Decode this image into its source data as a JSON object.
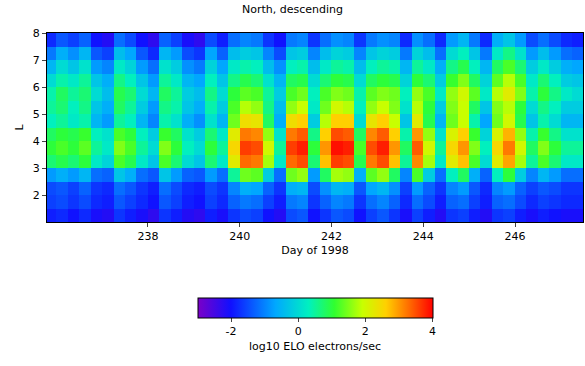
{
  "chart_data": {
    "type": "heatmap",
    "title": "North, descending",
    "xlabel": "Day of 1998",
    "ylabel": "L",
    "xlim": [
      235.8,
      247.48
    ],
    "xticks": [
      238,
      240,
      242,
      244,
      246
    ],
    "ylim": [
      1.0,
      8.0
    ],
    "yticks": [
      2,
      3,
      4,
      5,
      6,
      7,
      8
    ],
    "x": [
      235.875,
      236.125,
      236.375,
      236.625,
      236.875,
      237.125,
      237.375,
      237.625,
      237.875,
      238.125,
      238.375,
      238.625,
      238.875,
      239.125,
      239.375,
      239.625,
      239.875,
      240.125,
      240.375,
      240.625,
      240.875,
      241.125,
      241.375,
      241.625,
      241.875,
      242.125,
      242.375,
      242.625,
      242.875,
      243.125,
      243.375,
      243.625,
      243.875,
      244.125,
      244.375,
      244.625,
      244.875,
      245.125,
      245.375,
      245.625,
      245.875,
      246.125,
      246.375,
      246.625,
      246.875,
      247.125,
      247.375
    ],
    "y": [
      1.25,
      1.75,
      2.25,
      2.75,
      3.25,
      3.75,
      4.25,
      4.75,
      5.25,
      5.75,
      6.25,
      6.75,
      7.25,
      7.75
    ],
    "z": [
      [
        -1.9,
        -1.8,
        -2.0,
        -1.8,
        -2.1,
        -2.2,
        -1.7,
        -1.9,
        -2.1,
        -2.3,
        -1.7,
        -1.9,
        -2.2,
        -2.3,
        -1.9,
        -2.1,
        -1.7,
        -1.5,
        -1.6,
        -2.0,
        -2.2,
        -1.5,
        -1.4,
        -2.0,
        -1.7,
        -1.4,
        -1.5,
        -2.0,
        -1.6,
        -1.4,
        -1.7,
        -2.1,
        -1.6,
        -1.9,
        -2.2,
        -1.7,
        -1.6,
        -1.9,
        -2.2,
        -1.7,
        -1.6,
        -1.9,
        -2.1,
        -1.9,
        -2.0,
        -2.1,
        -2.1
      ],
      [
        -1.6,
        -1.5,
        -1.7,
        -1.5,
        -1.8,
        -1.9,
        -1.4,
        -1.6,
        -1.8,
        -2.0,
        -1.4,
        -1.6,
        -1.9,
        -2.0,
        -1.6,
        -1.8,
        -1.3,
        -1.1,
        -1.2,
        -1.6,
        -1.9,
        -1.1,
        -1.0,
        -1.7,
        -1.3,
        -1.0,
        -1.1,
        -1.7,
        -1.2,
        -1.0,
        -1.3,
        -1.8,
        -1.2,
        -1.5,
        -1.9,
        -1.3,
        -1.2,
        -1.6,
        -1.9,
        -1.3,
        -1.2,
        -1.5,
        -1.8,
        -1.6,
        -1.7,
        -1.8,
        -1.8
      ],
      [
        -1.5,
        -1.4,
        -1.6,
        -1.3,
        -1.7,
        -1.8,
        -1.2,
        -1.4,
        -1.7,
        -1.9,
        -1.2,
        -1.5,
        -1.8,
        -1.9,
        -1.5,
        -1.7,
        -1.0,
        -0.6,
        -0.7,
        -1.3,
        -1.7,
        -0.6,
        -0.5,
        -1.5,
        -0.9,
        -0.5,
        -0.6,
        -1.4,
        -0.7,
        -0.5,
        -0.9,
        -1.6,
        -0.8,
        -1.3,
        -1.7,
        -1.0,
        -0.8,
        -1.4,
        -1.8,
        -1.0,
        -0.8,
        -1.3,
        -1.6,
        -1.4,
        -1.5,
        -1.7,
        -1.7
      ],
      [
        -0.8,
        -0.6,
        -0.8,
        -0.5,
        -1.2,
        -1.3,
        -0.3,
        -0.6,
        -1.2,
        -1.4,
        -0.3,
        -0.8,
        -1.3,
        -1.4,
        -0.8,
        -1.2,
        0.5,
        1.4,
        1.3,
        -0.2,
        -1.2,
        1.4,
        1.6,
        -0.8,
        0.8,
        1.7,
        1.6,
        -0.6,
        1.3,
        1.6,
        0.8,
        -1.0,
        1.2,
        -0.2,
        -1.2,
        0.3,
        0.8,
        -0.6,
        -1.3,
        0.3,
        1.0,
        -0.2,
        -1.0,
        -0.5,
        -0.8,
        -1.2,
        -1.2
      ],
      [
        0.7,
        0.9,
        0.7,
        1.0,
        0.2,
        -0.1,
        1.2,
        0.9,
        0.2,
        -0.3,
        1.2,
        0.7,
        0.0,
        -0.3,
        0.7,
        0.2,
        2.2,
        3.3,
        3.2,
        1.7,
        0.2,
        3.3,
        3.5,
        0.7,
        2.7,
        3.6,
        3.5,
        0.9,
        3.2,
        3.5,
        2.7,
        0.5,
        3.1,
        1.7,
        0.2,
        2.2,
        2.7,
        1.2,
        0.0,
        2.2,
        2.9,
        1.7,
        0.5,
        1.2,
        0.7,
        0.2,
        0.2
      ],
      [
        1.0,
        1.2,
        1.0,
        1.3,
        0.5,
        0.2,
        1.5,
        1.2,
        0.5,
        0.0,
        1.5,
        1.0,
        0.3,
        0.0,
        1.0,
        0.5,
        2.5,
        3.6,
        3.5,
        2.0,
        0.5,
        3.6,
        3.8,
        1.0,
        3.0,
        3.9,
        3.8,
        1.2,
        3.5,
        3.8,
        3.0,
        0.8,
        3.4,
        2.0,
        0.5,
        2.5,
        3.0,
        1.5,
        0.3,
        2.5,
        3.2,
        2.0,
        0.8,
        1.5,
        1.0,
        0.5,
        0.5
      ],
      [
        0.8,
        1.0,
        0.9,
        1.1,
        0.3,
        0.1,
        1.2,
        1.0,
        0.3,
        -0.2,
        1.1,
        0.8,
        0.1,
        -0.2,
        0.7,
        0.2,
        2.2,
        3.2,
        3.1,
        1.6,
        0.1,
        3.2,
        3.4,
        0.6,
        2.6,
        3.5,
        3.4,
        0.8,
        3.1,
        3.4,
        2.6,
        0.4,
        3.0,
        1.6,
        0.1,
        2.1,
        2.6,
        1.1,
        -0.1,
        2.1,
        2.8,
        1.6,
        0.4,
        1.1,
        0.6,
        0.1,
        0.1
      ],
      [
        0.3,
        0.5,
        0.2,
        0.4,
        -0.5,
        -0.8,
        0.5,
        0.3,
        -0.5,
        -1.0,
        0.4,
        0.1,
        -0.6,
        -0.9,
        0.1,
        -0.5,
        1.4,
        2.4,
        2.3,
        0.8,
        -0.6,
        2.4,
        2.6,
        -0.2,
        1.8,
        2.6,
        2.6,
        0.0,
        2.3,
        2.6,
        1.9,
        -0.3,
        2.2,
        0.9,
        -0.5,
        1.4,
        1.9,
        0.4,
        -0.7,
        1.4,
        2.0,
        0.9,
        -0.3,
        0.4,
        0.0,
        -0.5,
        -0.5
      ],
      [
        0.5,
        0.7,
        0.3,
        0.6,
        -0.3,
        -0.6,
        0.8,
        0.5,
        -0.2,
        -0.8,
        0.6,
        0.4,
        -0.3,
        -0.6,
        0.4,
        -0.2,
        1.2,
        1.8,
        1.6,
        0.6,
        -0.4,
        1.6,
        1.9,
        0.2,
        1.4,
        2.0,
        1.8,
        0.3,
        1.6,
        1.9,
        1.5,
        0.1,
        1.8,
        1.0,
        -0.2,
        1.5,
        1.9,
        0.8,
        -0.3,
        1.5,
        1.8,
        1.0,
        0.0,
        0.6,
        0.3,
        -0.2,
        -0.2
      ],
      [
        0.4,
        0.8,
        0.5,
        0.7,
        0.0,
        -0.4,
        0.9,
        0.7,
        0.0,
        -0.5,
        0.8,
        0.5,
        -0.2,
        -0.4,
        0.6,
        0.0,
        1.0,
        1.3,
        1.2,
        0.5,
        -0.2,
        1.2,
        1.4,
        0.3,
        1.2,
        1.5,
        1.4,
        0.4,
        1.3,
        1.5,
        1.4,
        0.3,
        1.6,
        1.2,
        0.2,
        1.6,
        2.0,
        1.3,
        0.2,
        1.8,
        2.2,
        1.5,
        0.4,
        1.0,
        0.6,
        0.2,
        0.0
      ],
      [
        0.0,
        0.4,
        0.2,
        0.5,
        -0.3,
        -0.6,
        0.6,
        0.3,
        -0.3,
        -0.8,
        0.5,
        0.2,
        -0.5,
        -0.7,
        0.3,
        -0.3,
        0.6,
        0.9,
        0.7,
        0.1,
        -0.5,
        0.8,
        0.9,
        0.0,
        0.7,
        1.0,
        0.9,
        0.0,
        0.8,
        1.0,
        0.9,
        -0.1,
        1.0,
        0.7,
        -0.2,
        1.1,
        1.5,
        0.8,
        -0.1,
        1.3,
        1.8,
        1.2,
        0.2,
        0.7,
        0.3,
        -0.2,
        -0.3
      ],
      [
        -0.5,
        0.0,
        -0.3,
        0.1,
        -0.8,
        -1.0,
        0.2,
        -0.1,
        -0.8,
        -1.2,
        0.1,
        -0.2,
        -0.9,
        -1.1,
        -0.1,
        -0.7,
        0.2,
        0.4,
        0.3,
        -0.4,
        -0.9,
        0.3,
        0.4,
        -0.4,
        0.2,
        0.5,
        0.4,
        -0.4,
        0.3,
        0.5,
        0.4,
        -0.5,
        0.5,
        0.2,
        -0.6,
        0.6,
        0.9,
        0.3,
        -0.5,
        0.8,
        1.2,
        0.7,
        -0.2,
        0.2,
        -0.2,
        -0.6,
        -0.7
      ],
      [
        -1.1,
        -0.6,
        -0.9,
        -0.5,
        -1.4,
        -1.6,
        -0.4,
        -0.7,
        -1.4,
        -1.8,
        -0.5,
        -0.8,
        -1.5,
        -1.7,
        -0.7,
        -1.3,
        -0.4,
        -0.2,
        -0.3,
        -1.0,
        -1.5,
        -0.3,
        -0.2,
        -1.0,
        -0.4,
        -0.1,
        -0.2,
        -1.0,
        -0.3,
        -0.1,
        -0.2,
        -1.1,
        -0.1,
        -0.4,
        -1.2,
        0.0,
        0.3,
        -0.3,
        -1.1,
        0.2,
        0.6,
        0.1,
        -0.8,
        -0.4,
        -0.8,
        -1.2,
        -1.3
      ],
      [
        -1.8,
        -1.4,
        -1.6,
        -1.3,
        -2.0,
        -2.2,
        -1.2,
        -1.5,
        -2.0,
        -2.3,
        -1.3,
        -1.6,
        -2.1,
        -2.3,
        -1.5,
        -1.9,
        -1.2,
        -1.0,
        -1.1,
        -1.7,
        -2.0,
        -1.1,
        -1.0,
        -1.7,
        -1.2,
        -0.9,
        -1.0,
        -1.7,
        -1.1,
        -0.9,
        -1.0,
        -1.8,
        -0.9,
        -1.2,
        -1.8,
        -0.8,
        -0.5,
        -1.1,
        -1.8,
        -0.6,
        -0.3,
        -0.8,
        -1.5,
        -1.2,
        -1.5,
        -1.8,
        -1.9
      ]
    ],
    "colorbar": {
      "label": "log10 ELO electrons/sec",
      "range": [
        -3,
        4
      ],
      "ticks": [
        -2,
        0,
        2,
        4
      ]
    }
  }
}
